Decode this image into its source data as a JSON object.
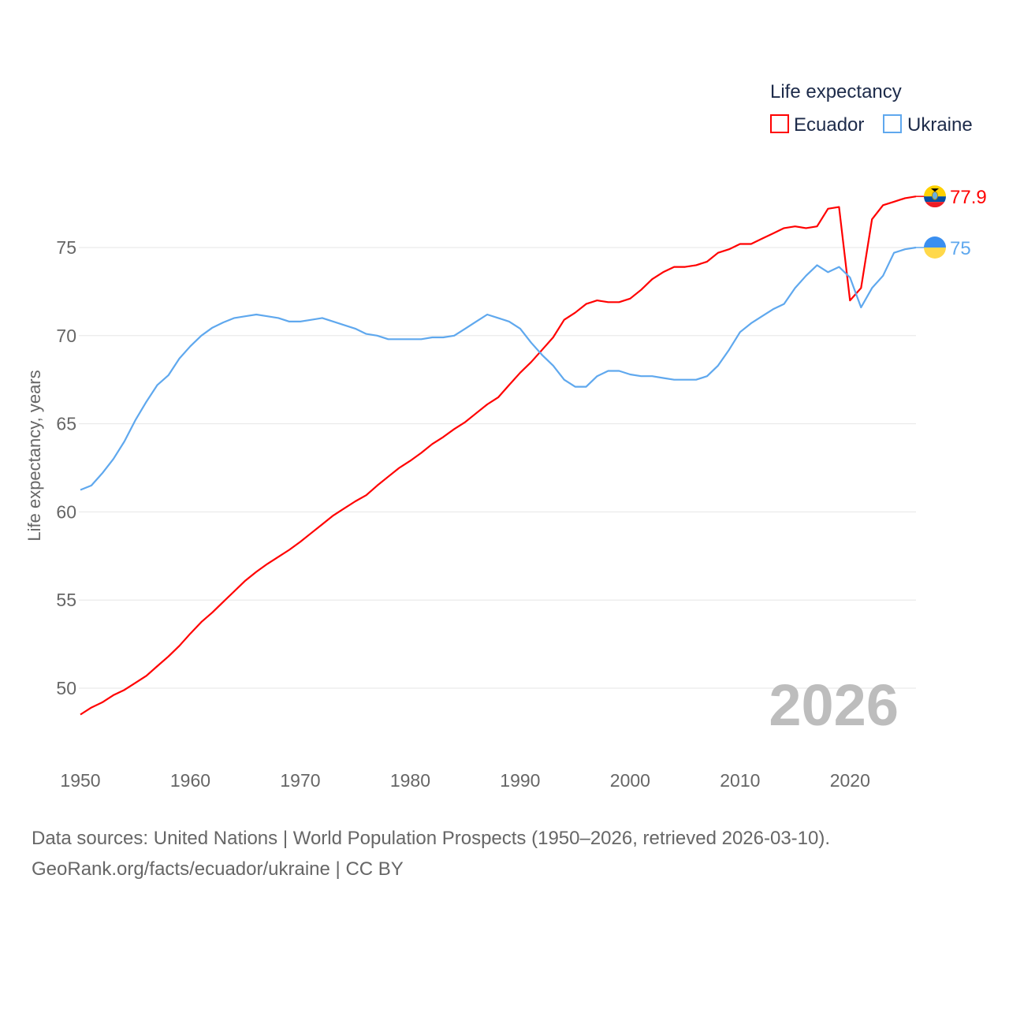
{
  "chart_data": {
    "type": "line",
    "title": "",
    "xlabel": "",
    "ylabel": "Life expectancy, years",
    "xlim": [
      1950,
      2026
    ],
    "ylim": [
      47.5,
      79
    ],
    "x_ticks": [
      1950,
      1960,
      1970,
      1980,
      1990,
      2000,
      2010,
      2020
    ],
    "y_ticks": [
      50,
      55,
      60,
      65,
      70,
      75
    ],
    "grid": true,
    "legend": {
      "title": "Life expectancy",
      "placement": "top-right"
    },
    "year_watermark": "2026",
    "x": [
      1950,
      1951,
      1952,
      1953,
      1954,
      1955,
      1956,
      1957,
      1958,
      1959,
      1960,
      1961,
      1962,
      1963,
      1964,
      1965,
      1966,
      1967,
      1968,
      1969,
      1970,
      1971,
      1972,
      1973,
      1974,
      1975,
      1976,
      1977,
      1978,
      1979,
      1980,
      1981,
      1982,
      1983,
      1984,
      1985,
      1986,
      1987,
      1988,
      1989,
      1990,
      1991,
      1992,
      1993,
      1994,
      1995,
      1996,
      1997,
      1998,
      1999,
      2000,
      2001,
      2002,
      2003,
      2004,
      2005,
      2006,
      2007,
      2008,
      2009,
      2010,
      2011,
      2012,
      2013,
      2014,
      2015,
      2016,
      2017,
      2018,
      2019,
      2020,
      2021,
      2022,
      2023,
      2024,
      2025,
      2026
    ],
    "series": [
      {
        "name": "Ecuador",
        "color": "#ff0000",
        "end_label": "77.9",
        "values": [
          48.5,
          48.9,
          49.2,
          49.6,
          49.9,
          50.3,
          50.7,
          51.25,
          51.8,
          52.4,
          53.1,
          53.75,
          54.3,
          54.9,
          55.5,
          56.1,
          56.6,
          57.05,
          57.45,
          57.85,
          58.3,
          58.8,
          59.3,
          59.8,
          60.2,
          60.6,
          60.95,
          61.5,
          62.0,
          62.5,
          62.9,
          63.35,
          63.85,
          64.25,
          64.7,
          65.1,
          65.6,
          66.1,
          66.5,
          67.2,
          67.9,
          68.5,
          69.2,
          69.9,
          70.9,
          71.3,
          71.8,
          72.0,
          71.9,
          71.9,
          72.1,
          72.6,
          73.2,
          73.6,
          73.9,
          73.9,
          74.0,
          74.2,
          74.7,
          74.9,
          75.2,
          75.2,
          75.5,
          75.8,
          76.1,
          76.2,
          76.1,
          76.2,
          77.2,
          77.3,
          72.0,
          72.7,
          76.6,
          77.4,
          77.6,
          77.8,
          77.9
        ]
      },
      {
        "name": "Ukraine",
        "color": "#5fa8ee",
        "end_label": "75",
        "values": [
          61.25,
          61.5,
          62.2,
          63.0,
          64.0,
          65.2,
          66.25,
          67.2,
          67.75,
          68.7,
          69.4,
          70.0,
          70.45,
          70.75,
          71.0,
          71.1,
          71.2,
          71.1,
          71.0,
          70.8,
          70.8,
          70.9,
          71.0,
          70.8,
          70.6,
          70.4,
          70.1,
          70.0,
          69.8,
          69.8,
          69.8,
          69.8,
          69.9,
          69.9,
          70.0,
          70.4,
          70.8,
          71.2,
          71.0,
          70.8,
          70.4,
          69.6,
          68.9,
          68.3,
          67.5,
          67.1,
          67.1,
          67.7,
          68.0,
          68.0,
          67.8,
          67.7,
          67.7,
          67.6,
          67.5,
          67.5,
          67.5,
          67.7,
          68.3,
          69.2,
          70.2,
          70.7,
          71.1,
          71.5,
          71.8,
          72.7,
          73.4,
          74.0,
          73.6,
          73.9,
          73.3,
          71.6,
          72.7,
          73.4,
          74.7,
          74.9,
          75.0
        ]
      }
    ]
  },
  "footer": {
    "line1": "Data sources: United Nations | World Population Prospects (1950–2026, retrieved 2026-03-10).",
    "line2": "GeoRank.org/facts/ecuador/ukraine | CC BY"
  }
}
